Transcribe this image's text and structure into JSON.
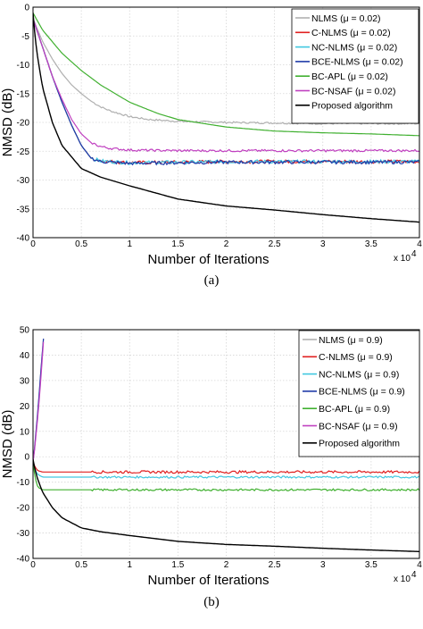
{
  "chart_data": [
    {
      "type": "line",
      "caption": "(a)",
      "xlabel": "Number of Iterations",
      "ylabel": "NMSD (dB)",
      "x_multiplier_label": "x 10",
      "x_multiplier_exp": "4",
      "xlim": [
        0,
        4
      ],
      "ylim": [
        -40,
        0
      ],
      "xticks": [
        "0",
        "0.5",
        "1",
        "1.5",
        "2",
        "2.5",
        "3",
        "3.5",
        "4"
      ],
      "yticks": [
        "0",
        "-5",
        "-10",
        "-15",
        "-20",
        "-25",
        "-30",
        "-35",
        "-40"
      ],
      "grid": true,
      "legend_position": "top-right",
      "series": [
        {
          "name": "NLMS (μ = 0.02)",
          "color": "#b0b0b0",
          "noise": 0.15,
          "x": [
            0,
            0.05,
            0.1,
            0.2,
            0.3,
            0.4,
            0.5,
            0.6,
            0.7,
            0.8,
            1.0,
            1.2,
            1.5,
            2.0,
            2.5,
            3.0,
            3.5,
            4.0
          ],
          "y": [
            -2,
            -4,
            -6,
            -9,
            -11.5,
            -13.5,
            -15,
            -16.3,
            -17.3,
            -18,
            -19,
            -19.5,
            -19.8,
            -20,
            -20.1,
            -20.2,
            -20.2,
            -20.2
          ]
        },
        {
          "name": "C-NLMS (μ = 0.02)",
          "color": "#e02020",
          "noise": 0.3,
          "x": [
            0,
            0.1,
            0.2,
            0.3,
            0.4,
            0.5,
            0.6,
            0.7,
            0.8,
            1.0,
            1.5,
            2.0,
            2.5,
            3.0,
            3.5,
            4.0
          ],
          "y": [
            -2,
            -7,
            -12,
            -16.5,
            -20.5,
            -24,
            -26.2,
            -26.7,
            -26.8,
            -27,
            -26.9,
            -26.8,
            -26.8,
            -26.8,
            -26.8,
            -26.8
          ]
        },
        {
          "name": "NC-NLMS (μ = 0.02)",
          "color": "#40c8e0",
          "noise": 0.3,
          "x": [
            0,
            0.1,
            0.2,
            0.3,
            0.4,
            0.5,
            0.6,
            0.7,
            0.8,
            1.0,
            1.5,
            2.0,
            2.5,
            3.0,
            3.5,
            4.0
          ],
          "y": [
            -2,
            -7,
            -12,
            -16.5,
            -20.5,
            -24,
            -26.2,
            -26.7,
            -26.8,
            -27,
            -26.9,
            -26.8,
            -26.8,
            -26.8,
            -26.8,
            -26.8
          ]
        },
        {
          "name": "BCE-NLMS (μ = 0.02)",
          "color": "#1f3aa8",
          "noise": 0.3,
          "x": [
            0,
            0.1,
            0.2,
            0.3,
            0.4,
            0.5,
            0.6,
            0.7,
            0.8,
            1.0,
            1.5,
            2.0,
            2.5,
            3.0,
            3.5,
            4.0
          ],
          "y": [
            -2,
            -7,
            -12,
            -16.5,
            -20.5,
            -24,
            -26.2,
            -26.8,
            -26.9,
            -27.1,
            -27,
            -26.9,
            -26.9,
            -26.9,
            -26.9,
            -26.9
          ]
        },
        {
          "name": "BC-APL (μ = 0.02)",
          "color": "#40b030",
          "noise": 0,
          "x": [
            0,
            0.1,
            0.2,
            0.3,
            0.5,
            0.7,
            1.0,
            1.3,
            1.5,
            2.0,
            2.5,
            3.0,
            3.5,
            4.0
          ],
          "y": [
            -1,
            -4,
            -6,
            -8,
            -11,
            -13.5,
            -16.5,
            -18.5,
            -19.5,
            -20.8,
            -21.5,
            -21.8,
            -22,
            -22.3
          ]
        },
        {
          "name": "BC-NSAF (μ = 0.02)",
          "color": "#c040c0",
          "noise": 0.2,
          "x": [
            0,
            0.1,
            0.2,
            0.3,
            0.4,
            0.5,
            0.6,
            0.7,
            0.8,
            1.0,
            1.5,
            2.0,
            2.5,
            3.0,
            3.5,
            4.0
          ],
          "y": [
            -2,
            -7,
            -12,
            -16,
            -19.5,
            -22,
            -23.5,
            -24.2,
            -24.5,
            -24.8,
            -24.9,
            -24.9,
            -24.9,
            -24.9,
            -24.9,
            -24.9
          ]
        },
        {
          "name": "Proposed algorithm",
          "color": "#000000",
          "noise": 0,
          "x": [
            0,
            0.02,
            0.05,
            0.1,
            0.2,
            0.3,
            0.5,
            0.7,
            1.0,
            1.5,
            2.0,
            2.5,
            3.0,
            3.5,
            4.0
          ],
          "y": [
            -1,
            -5,
            -9,
            -14,
            -20,
            -24,
            -28,
            -29.5,
            -31,
            -33.3,
            -34.5,
            -35.2,
            -36,
            -36.7,
            -37.3
          ]
        }
      ]
    },
    {
      "type": "line",
      "caption": "(b)",
      "xlabel": "Number of Iterations",
      "ylabel": "NMSD (dB)",
      "x_multiplier_label": "x 10",
      "x_multiplier_exp": "4",
      "xlim": [
        0,
        4
      ],
      "ylim": [
        -40,
        50
      ],
      "xticks": [
        "0",
        "0.5",
        "1",
        "1.5",
        "2",
        "2.5",
        "3",
        "3.5",
        "4"
      ],
      "yticks": [
        "50",
        "40",
        "30",
        "20",
        "10",
        "0",
        "-10",
        "-20",
        "-30",
        "-40"
      ],
      "grid": true,
      "legend_position": "top-right",
      "series": [
        {
          "name": "NLMS (μ = 0.9)",
          "color": "#b0b0b0",
          "noise": 0,
          "x": [
            0,
            0.02,
            0.05,
            0.08,
            0.1,
            0.12
          ],
          "y": [
            -2,
            5,
            18,
            33,
            43,
            52
          ]
        },
        {
          "name": "C-NLMS (μ = 0.9)",
          "color": "#e02020",
          "noise": 0.5,
          "x": [
            0,
            0.02,
            0.05,
            0.1,
            0.5,
            1.0,
            2.0,
            3.0,
            4.0
          ],
          "y": [
            -2,
            -4,
            -5.5,
            -6,
            -6,
            -6,
            -6,
            -6,
            -6
          ]
        },
        {
          "name": "NC-NLMS (μ = 0.9)",
          "color": "#40c8e0",
          "noise": 0.4,
          "x": [
            0,
            0.02,
            0.05,
            0.1,
            0.5,
            1.0,
            2.0,
            3.0,
            4.0
          ],
          "y": [
            -2,
            -5,
            -7,
            -8,
            -8,
            -8,
            -8,
            -8,
            -8
          ]
        },
        {
          "name": "BCE-NLMS (μ = 0.9)",
          "color": "#1f3aa8",
          "noise": 0,
          "x": [
            0,
            0.02,
            0.05,
            0.08,
            0.1,
            0.12
          ],
          "y": [
            -2,
            5,
            18,
            33,
            43,
            52
          ]
        },
        {
          "name": "BC-APL (μ = 0.9)",
          "color": "#40b030",
          "noise": 0.4,
          "x": [
            0,
            0.02,
            0.05,
            0.1,
            0.5,
            1.0,
            2.0,
            3.0,
            4.0
          ],
          "y": [
            -2,
            -8,
            -12,
            -13,
            -13,
            -13,
            -13,
            -13,
            -13
          ]
        },
        {
          "name": "BC-NSAF (μ = 0.9)",
          "color": "#c040c0",
          "noise": 0,
          "x": [
            0,
            0.02,
            0.05,
            0.08,
            0.1,
            0.12
          ],
          "y": [
            -2,
            4,
            16,
            30,
            41,
            52
          ]
        },
        {
          "name": "Proposed algorithm",
          "color": "#000000",
          "noise": 0,
          "x": [
            0,
            0.02,
            0.05,
            0.1,
            0.2,
            0.3,
            0.5,
            0.7,
            1.0,
            1.5,
            2.0,
            2.5,
            3.0,
            3.5,
            4.0
          ],
          "y": [
            -1,
            -5,
            -9,
            -14,
            -20,
            -24,
            -28,
            -29.5,
            -31,
            -33.3,
            -34.5,
            -35.2,
            -36,
            -36.7,
            -37.3
          ]
        }
      ]
    }
  ]
}
